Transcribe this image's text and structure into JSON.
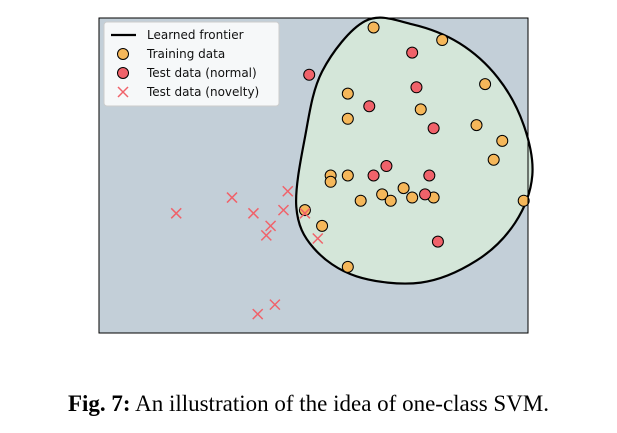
{
  "chart_data": {
    "type": "scatter",
    "title": "",
    "xlabel": "",
    "ylabel": "",
    "xlim": [
      0,
      10
    ],
    "ylim": [
      0,
      10
    ],
    "grid": false,
    "axis_ticks": false,
    "legend_position": "top-left",
    "legend": [
      {
        "key": "frontier",
        "label": "Learned frontier"
      },
      {
        "key": "training",
        "label": "Training data"
      },
      {
        "key": "test_normal",
        "label": "Test data (normal)"
      },
      {
        "key": "test_novelty",
        "label": "Test data (novelty)"
      }
    ],
    "series": [
      {
        "key": "training",
        "name": "Training data",
        "marker": "circle",
        "color": "#f5b75a",
        "points": [
          [
            6.4,
            9.7
          ],
          [
            8.0,
            9.3
          ],
          [
            9.0,
            7.9
          ],
          [
            5.8,
            7.6
          ],
          [
            7.5,
            7.1
          ],
          [
            5.8,
            6.8
          ],
          [
            8.8,
            6.6
          ],
          [
            9.4,
            6.1
          ],
          [
            9.2,
            5.5
          ],
          [
            5.4,
            5.0
          ],
          [
            5.8,
            5.0
          ],
          [
            5.4,
            4.8
          ],
          [
            6.6,
            4.4
          ],
          [
            7.1,
            4.6
          ],
          [
            7.3,
            4.3
          ],
          [
            6.8,
            4.2
          ],
          [
            6.1,
            4.2
          ],
          [
            7.8,
            4.3
          ],
          [
            9.9,
            4.2
          ],
          [
            4.8,
            3.9
          ],
          [
            5.2,
            3.4
          ],
          [
            5.8,
            2.1
          ]
        ]
      },
      {
        "key": "test_normal",
        "name": "Test data (normal)",
        "marker": "circle",
        "color": "#f0626a",
        "points": [
          [
            4.9,
            8.2
          ],
          [
            7.3,
            8.9
          ],
          [
            7.4,
            7.8
          ],
          [
            6.3,
            7.2
          ],
          [
            7.8,
            6.5
          ],
          [
            6.7,
            5.3
          ],
          [
            6.4,
            5.0
          ],
          [
            7.7,
            5.0
          ],
          [
            7.6,
            4.4
          ],
          [
            7.9,
            2.9
          ]
        ]
      },
      {
        "key": "test_novelty",
        "name": "Test data (novelty)",
        "marker": "x",
        "color": "#f0626a",
        "points": [
          [
            1.8,
            3.8
          ],
          [
            3.1,
            4.3
          ],
          [
            4.4,
            4.5
          ],
          [
            3.6,
            3.8
          ],
          [
            4.3,
            3.9
          ],
          [
            4.0,
            3.4
          ],
          [
            3.9,
            3.1
          ],
          [
            4.8,
            3.8
          ],
          [
            5.1,
            3.0
          ],
          [
            3.7,
            0.6
          ],
          [
            4.1,
            0.9
          ]
        ]
      }
    ],
    "frontier": {
      "key": "frontier",
      "name": "Learned frontier",
      "points": [
        [
          6.2,
          9.9
        ],
        [
          7.3,
          9.8
        ],
        [
          8.4,
          9.2
        ],
        [
          9.3,
          8.1
        ],
        [
          9.9,
          6.6
        ],
        [
          10.1,
          5.0
        ],
        [
          9.7,
          3.5
        ],
        [
          8.8,
          2.3
        ],
        [
          7.5,
          1.6
        ],
        [
          6.0,
          1.8
        ],
        [
          5.0,
          2.7
        ],
        [
          4.6,
          4.0
        ],
        [
          4.8,
          6.2
        ],
        [
          5.2,
          8.3
        ]
      ]
    }
  },
  "colors": {
    "axes_background": "#c3cfd8",
    "frontier_fill": "#d4e6d9",
    "frontier_line": "#000000",
    "marker_edge": "#000000"
  },
  "caption": {
    "label": "Fig. 7:",
    "text": "An illustration of the idea of one-class SVM."
  }
}
